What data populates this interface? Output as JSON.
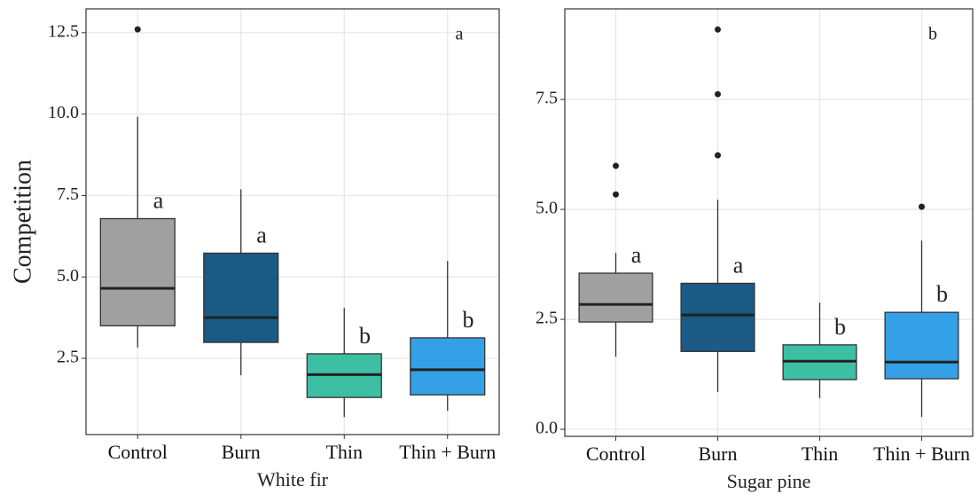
{
  "chart_data": [
    {
      "type": "box",
      "x_label": "White fir",
      "y_label": "Competition",
      "panel_label": "a",
      "categories": [
        "Control",
        "Burn",
        "Thin",
        "Thin + Burn"
      ],
      "group_labels": [
        "a",
        "a",
        "b",
        "b"
      ],
      "ylim": [
        0.16,
        13.23
      ],
      "yticks": [
        2.5,
        {
          "value": 5,
          "label": "5.0"
        },
        7.5,
        {
          "value": 10,
          "label": "10.0"
        },
        12.5
      ],
      "grid": true,
      "boxes": [
        {
          "color": "#a0a0a0",
          "whisker_low": 2.83,
          "q1": 3.5,
          "median": 4.65,
          "q3": 6.79,
          "whisker_high": 9.92,
          "outliers": [
            12.6
          ]
        },
        {
          "color": "#1a5a85",
          "whisker_low": 1.98,
          "q1": 2.99,
          "median": 3.75,
          "q3": 5.73,
          "whisker_high": 7.69,
          "outliers": []
        },
        {
          "color": "#3dbfa4",
          "whisker_low": 0.7,
          "q1": 1.3,
          "median": 2.0,
          "q3": 2.64,
          "whisker_high": 4.05,
          "outliers": []
        },
        {
          "color": "#33a0e8",
          "whisker_low": 0.89,
          "q1": 1.38,
          "median": 2.15,
          "q3": 3.13,
          "whisker_high": 5.49,
          "outliers": []
        }
      ]
    },
    {
      "type": "box",
      "x_label": "Sugar pine",
      "panel_label": "b",
      "categories": [
        "Control",
        "Burn",
        "Thin",
        "Thin + Burn"
      ],
      "group_labels": [
        "a",
        "a",
        "b",
        "b"
      ],
      "ylim": [
        -0.16,
        9.56
      ],
      "yticks": [
        {
          "value": 0,
          "label": "0.0"
        },
        2.5,
        {
          "value": 5,
          "label": "5.0"
        },
        7.5
      ],
      "grid": true,
      "boxes": [
        {
          "color": "#a0a0a0",
          "whisker_low": 1.65,
          "q1": 2.44,
          "median": 2.84,
          "q3": 3.55,
          "whisker_high": 4.01,
          "outliers": [
            5.99,
            5.34
          ]
        },
        {
          "color": "#1a5a85",
          "whisker_low": 0.85,
          "q1": 1.77,
          "median": 2.6,
          "q3": 3.32,
          "whisker_high": 5.22,
          "outliers": [
            9.09,
            7.62,
            6.23
          ]
        },
        {
          "color": "#3dbfa4",
          "whisker_low": 0.71,
          "q1": 1.13,
          "median": 1.55,
          "q3": 1.92,
          "whisker_high": 2.88,
          "outliers": []
        },
        {
          "color": "#33a0e8",
          "whisker_low": 0.28,
          "q1": 1.15,
          "median": 1.53,
          "q3": 2.66,
          "whisker_high": 4.29,
          "outliers": [
            5.06
          ]
        }
      ]
    }
  ]
}
